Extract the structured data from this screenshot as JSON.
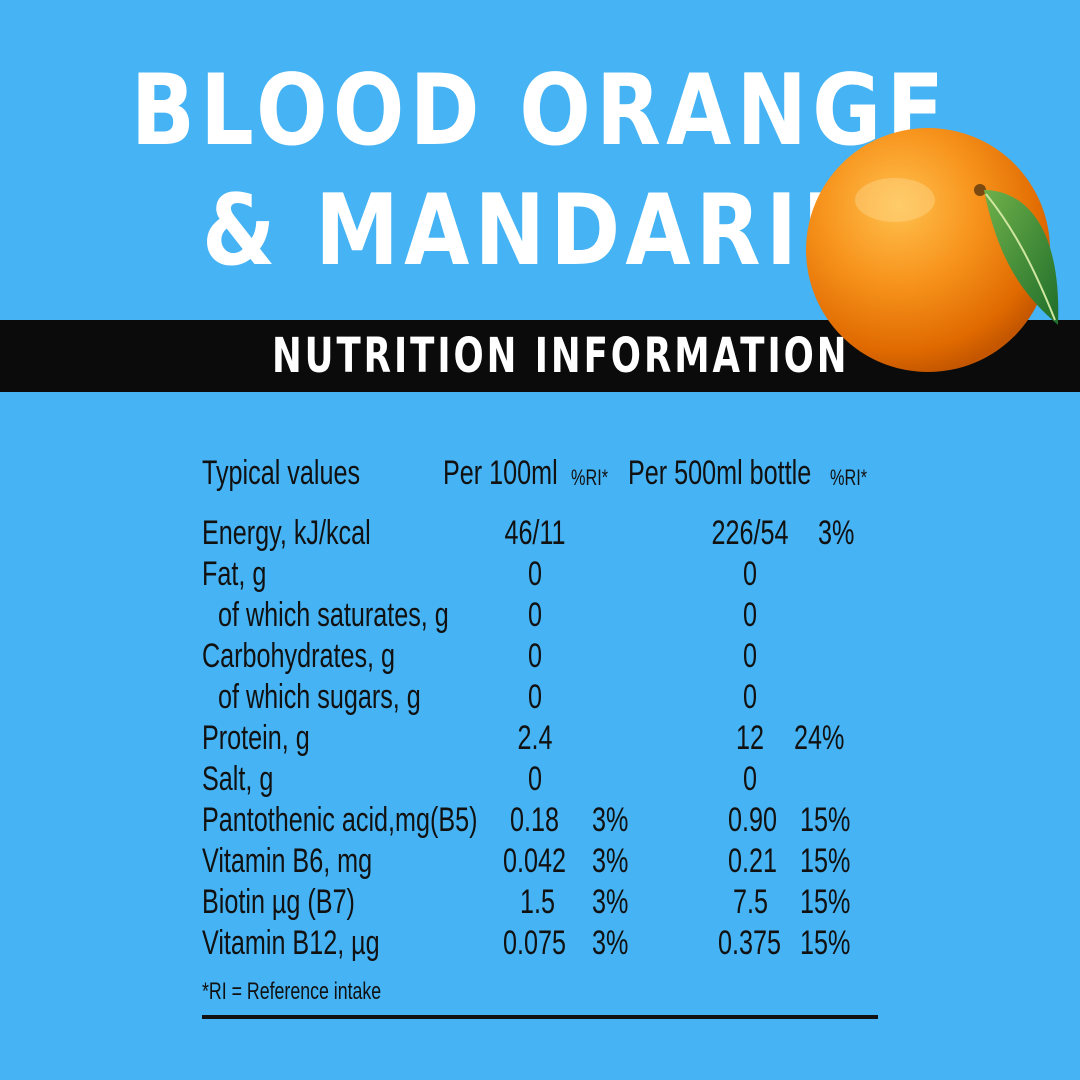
{
  "title": {
    "line1": "BLOOD ORANGE",
    "line2": "& MANDARIN"
  },
  "band_label": "NUTRITION INFORMATION",
  "table": {
    "header": {
      "typical": "Typical values",
      "per100": "Per 100ml",
      "ri1": "%RI*",
      "per500": "Per 500ml bottle",
      "ri2": "%RI*"
    },
    "rows": [
      {
        "label": "Energy, kJ/kcal",
        "per100": "46/11",
        "ri100": "",
        "per500": "226/54",
        "ri500": "3%"
      },
      {
        "label": "Fat, g",
        "per100": "0",
        "ri100": "",
        "per500": "0",
        "ri500": ""
      },
      {
        "label": "of which saturates, g",
        "per100": "0",
        "ri100": "",
        "per500": "0",
        "ri500": ""
      },
      {
        "label": "Carbohydrates, g",
        "per100": "0",
        "ri100": "",
        "per500": "0",
        "ri500": ""
      },
      {
        "label": "of which sugars, g",
        "per100": "0",
        "ri100": "",
        "per500": "0",
        "ri500": ""
      },
      {
        "label": "Protein, g",
        "per100": "2.4",
        "ri100": "",
        "per500": "12",
        "ri500": "24%"
      },
      {
        "label": "Salt, g",
        "per100": "0",
        "ri100": "",
        "per500": "0",
        "ri500": ""
      },
      {
        "label": "Pantothenic acid,mg(B5)",
        "per100": "0.18",
        "ri100": "3%",
        "per500": "0.90",
        "ri500": "15%"
      },
      {
        "label": "Vitamin B6, mg",
        "per100": "0.042",
        "ri100": "3%",
        "per500": "0.21",
        "ri500": "15%"
      },
      {
        "label": "Biotin µg (B7)",
        "per100": "1.5",
        "ri100": "3%",
        "per500": "7.5",
        "ri500": "15%"
      },
      {
        "label": "Vitamin B12, µg",
        "per100": "0.075",
        "ri100": "3%",
        "per500": "0.375",
        "ri500": "15%"
      }
    ],
    "footnote": "*RI = Reference intake"
  },
  "colors": {
    "background": "#45b3f4",
    "band": "#0b0b0b",
    "text": "#111111",
    "title": "#ffffff"
  },
  "icons": [
    "orange-icon"
  ]
}
